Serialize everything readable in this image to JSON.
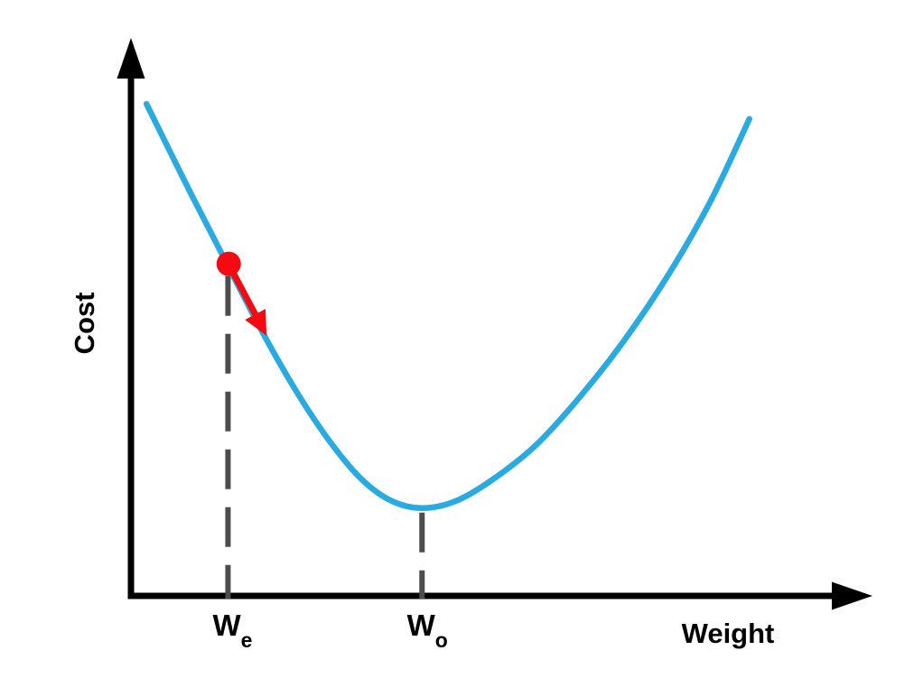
{
  "figure": {
    "background": "#ffffff",
    "colors": {
      "curve_blue": "#29abe2",
      "marker_red": "#f40a10",
      "dash_gray": "#4d4d4d",
      "axis_black": "#000000"
    }
  },
  "chart_data": {
    "type": "line",
    "title": "",
    "xlabel": "Weight",
    "ylabel": "Cost",
    "xlim": [
      0,
      10
    ],
    "ylim": [
      0,
      10
    ],
    "grid": false,
    "legend": "none",
    "x_ticks": [
      {
        "label_main": "W",
        "label_sub": "e",
        "x": 1.31
      },
      {
        "label_main": "W",
        "label_sub": "o",
        "x": 3.93
      }
    ],
    "series": [
      {
        "name": "cost-curve",
        "color": "#29abe2",
        "points": [
          [
            0.21,
            8.86
          ],
          [
            0.8,
            7.27
          ],
          [
            1.35,
            5.84
          ],
          [
            1.84,
            4.59
          ],
          [
            2.3,
            3.54
          ],
          [
            2.73,
            2.7
          ],
          [
            3.13,
            2.08
          ],
          [
            3.52,
            1.71
          ],
          [
            3.93,
            1.58
          ],
          [
            4.39,
            1.71
          ],
          [
            4.9,
            2.11
          ],
          [
            5.48,
            2.73
          ],
          [
            6.06,
            3.58
          ],
          [
            6.66,
            4.6
          ],
          [
            7.26,
            5.79
          ],
          [
            7.83,
            7.12
          ],
          [
            8.35,
            8.59
          ]
        ]
      }
    ],
    "annotations": {
      "current_point": {
        "x": 1.32,
        "y": 5.98,
        "marker": "dot",
        "radius": 13.5,
        "color": "#f40a10"
      },
      "gradient_arrow": {
        "from": [
          1.38,
          5.82
        ],
        "to": [
          1.79,
          4.79
        ],
        "color": "#f40a10"
      },
      "dashed_guides": [
        {
          "x": 1.31,
          "y_top": 5.76,
          "tick": "We"
        },
        {
          "x": 3.93,
          "y_top": 1.5,
          "tick": "Wo"
        }
      ]
    }
  }
}
